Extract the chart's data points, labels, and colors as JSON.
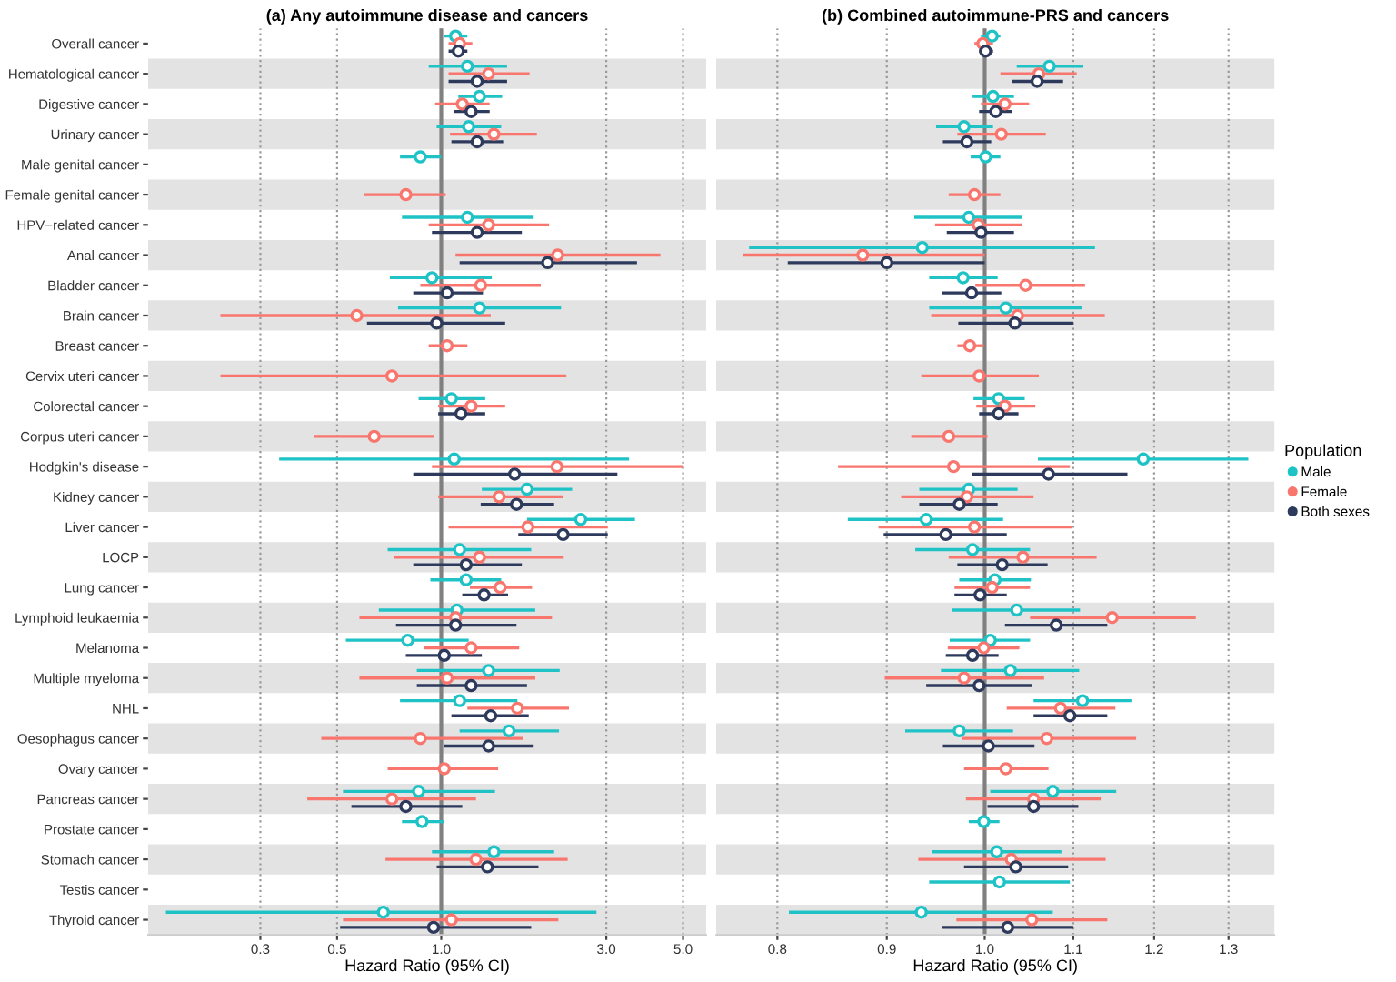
{
  "chart_data": [
    {
      "type": "scatter",
      "orientation": "horizontal",
      "title": "(a) Any autoimmune disease and cancers",
      "xlabel": "Hazard Ratio (95% CI)",
      "categories": [
        "Overall cancer",
        "Hematological cancer",
        "Digestive cancer",
        "Urinary cancer",
        "Male genital cancer",
        "Female genital cancer",
        "HPV−related cancer",
        "Anal cancer",
        "Bladder cancer",
        "Brain cancer",
        "Breast cancer",
        "Cervix uteri cancer",
        "Colorectal cancer",
        "Corpus uteri cancer",
        "Hodgkin's disease",
        "Kidney cancer",
        "Liver cancer",
        "LOCP",
        "Lung cancer",
        "Lymphoid leukaemia",
        "Melanoma",
        "Multiple myeloma",
        "NHL",
        "Oesophagus cancer",
        "Ovary cancer",
        "Pancreas cancer",
        "Prostate cancer",
        "Stomach cancer",
        "Testis cancer",
        "Thyroid cancer"
      ],
      "log": "x",
      "xlim": [
        0.142,
        5.84
      ],
      "xticks": [
        0.3,
        0.5,
        {
          "value": 1,
          "label": "1.0"
        },
        {
          "value": 3,
          "label": "3.0"
        },
        {
          "value": 5,
          "label": "5.0"
        }
      ],
      "grid": "x",
      "marker": "circle",
      "ref_lines": [
        {
          "axis": "x",
          "value": 1,
          "color": "#808080"
        }
      ],
      "bands": [
        {
          "axis": "y",
          "from": "Hematological cancer",
          "to": "Hematological cancer",
          "color": "#e3e3e3"
        },
        {
          "axis": "y",
          "from": "Urinary cancer",
          "to": "Urinary cancer",
          "color": "#e3e3e3"
        },
        {
          "axis": "y",
          "from": "Female genital cancer",
          "to": "Female genital cancer",
          "color": "#e3e3e3"
        },
        {
          "axis": "y",
          "from": "Anal cancer",
          "to": "Anal cancer",
          "color": "#e3e3e3"
        },
        {
          "axis": "y",
          "from": "Brain cancer",
          "to": "Brain cancer",
          "color": "#e3e3e3"
        },
        {
          "axis": "y",
          "from": "Cervix uteri cancer",
          "to": "Cervix uteri cancer",
          "color": "#e3e3e3"
        },
        {
          "axis": "y",
          "from": "Corpus uteri cancer",
          "to": "Corpus uteri cancer",
          "color": "#e3e3e3"
        },
        {
          "axis": "y",
          "from": "Kidney cancer",
          "to": "Kidney cancer",
          "color": "#e3e3e3"
        },
        {
          "axis": "y",
          "from": "LOCP",
          "to": "LOCP",
          "color": "#e3e3e3"
        },
        {
          "axis": "y",
          "from": "Lymphoid leukaemia",
          "to": "Lymphoid leukaemia",
          "color": "#e3e3e3"
        },
        {
          "axis": "y",
          "from": "Multiple myeloma",
          "to": "Multiple myeloma",
          "color": "#e3e3e3"
        },
        {
          "axis": "y",
          "from": "Oesophagus cancer",
          "to": "Oesophagus cancer",
          "color": "#e3e3e3"
        },
        {
          "axis": "y",
          "from": "Pancreas cancer",
          "to": "Pancreas cancer",
          "color": "#e3e3e3"
        },
        {
          "axis": "y",
          "from": "Stomach cancer",
          "to": "Stomach cancer",
          "color": "#e3e3e3"
        },
        {
          "axis": "y",
          "from": "Thyroid cancer",
          "to": "Thyroid cancer",
          "color": "#e3e3e3"
        }
      ],
      "series": [
        {
          "color": "#1fc3c6",
          "values": [
            1.1,
            1.19,
            1.29,
            1.2,
            0.87,
            null,
            1.19,
            null,
            0.94,
            1.29,
            null,
            null,
            1.07,
            null,
            1.09,
            1.77,
            2.53,
            1.13,
            1.18,
            1.11,
            0.8,
            1.37,
            1.13,
            1.57,
            null,
            0.86,
            0.88,
            1.42,
            null,
            0.68
          ],
          "errors": [
            [
              1.02,
              1.19
            ],
            [
              0.92,
              1.55
            ],
            [
              1.12,
              1.5
            ],
            [
              0.97,
              1.49
            ],
            [
              0.76,
              1.0
            ],
            null,
            [
              0.77,
              1.85
            ],
            null,
            [
              0.71,
              1.4
            ],
            [
              0.75,
              2.22
            ],
            null,
            null,
            [
              0.86,
              1.34
            ],
            null,
            [
              0.34,
              3.49
            ],
            [
              1.31,
              2.39
            ],
            [
              1.77,
              3.63
            ],
            [
              0.7,
              1.82
            ],
            [
              0.93,
              1.49
            ],
            [
              0.66,
              1.87
            ],
            [
              0.53,
              1.2
            ],
            [
              0.85,
              2.2
            ],
            [
              0.76,
              1.66
            ],
            [
              1.13,
              2.19
            ],
            null,
            [
              0.52,
              1.43
            ],
            [
              0.77,
              1.02
            ],
            [
              0.94,
              2.12
            ],
            null,
            [
              0.16,
              2.81
            ]
          ]
        },
        {
          "color": "#f8766d",
          "values": [
            1.13,
            1.37,
            1.15,
            1.42,
            null,
            0.79,
            1.37,
            2.17,
            1.3,
            0.57,
            1.04,
            0.72,
            1.22,
            0.64,
            2.16,
            1.47,
            1.78,
            1.29,
            1.48,
            1.1,
            1.22,
            1.04,
            1.66,
            0.87,
            1.02,
            0.72,
            null,
            1.26,
            null,
            1.07
          ],
          "errors": [
            [
              1.05,
              1.23
            ],
            [
              1.05,
              1.8
            ],
            [
              0.96,
              1.38
            ],
            [
              1.06,
              1.89
            ],
            null,
            [
              0.6,
              1.03
            ],
            [
              0.92,
              2.05
            ],
            [
              1.1,
              4.3
            ],
            [
              0.87,
              1.94
            ],
            [
              0.23,
              1.39
            ],
            [
              0.92,
              1.19
            ],
            [
              0.23,
              2.3
            ],
            [
              0.98,
              1.53
            ],
            [
              0.43,
              0.95
            ],
            [
              0.94,
              5.02
            ],
            [
              0.98,
              2.25
            ],
            [
              1.05,
              3.03
            ],
            [
              0.73,
              2.26
            ],
            [
              1.21,
              1.83
            ],
            [
              0.58,
              2.09
            ],
            [
              0.89,
              1.68
            ],
            [
              0.58,
              1.87
            ],
            [
              1.19,
              2.34
            ],
            [
              0.45,
              1.72
            ],
            [
              0.7,
              1.46
            ],
            [
              0.41,
              1.26
            ],
            null,
            [
              0.69,
              2.32
            ],
            null,
            [
              0.52,
              2.18
            ]
          ]
        },
        {
          "color": "#2e3a5c",
          "values": [
            1.12,
            1.27,
            1.22,
            1.27,
            null,
            null,
            1.27,
            2.03,
            1.04,
            0.97,
            null,
            null,
            1.14,
            null,
            1.63,
            1.65,
            2.25,
            1.18,
            1.33,
            1.1,
            1.02,
            1.22,
            1.39,
            1.37,
            null,
            0.79,
            null,
            1.36,
            null,
            0.95
          ],
          "errors": [
            [
              1.05,
              1.19
            ],
            [
              1.05,
              1.55
            ],
            [
              1.09,
              1.38
            ],
            [
              1.07,
              1.51
            ],
            null,
            null,
            [
              0.94,
              1.71
            ],
            [
              1.13,
              3.68
            ],
            [
              0.83,
              1.32
            ],
            [
              0.61,
              1.53
            ],
            null,
            null,
            [
              0.98,
              1.34
            ],
            null,
            [
              0.83,
              3.23
            ],
            [
              1.3,
              2.12
            ],
            [
              1.67,
              3.03
            ],
            [
              0.83,
              1.71
            ],
            [
              1.15,
              1.56
            ],
            [
              0.74,
              1.65
            ],
            [
              0.79,
              1.31
            ],
            [
              0.85,
              1.77
            ],
            [
              1.07,
              1.79
            ],
            [
              1.02,
              1.85
            ],
            null,
            [
              0.55,
              1.15
            ],
            null,
            [
              0.97,
              1.91
            ],
            null,
            [
              0.51,
              1.82
            ]
          ]
        }
      ]
    },
    {
      "type": "scatter",
      "orientation": "horizontal",
      "title": "(b) Combined autoimmune-PRS and cancers",
      "xlabel": "Hazard Ratio (95% CI)",
      "legend_title": "Population",
      "categories": [
        "Overall cancer",
        "Hematological cancer",
        "Digestive cancer",
        "Urinary cancer",
        "Male genital cancer",
        "Female genital cancer",
        "HPV−related cancer",
        "Anal cancer",
        "Bladder cancer",
        "Brain cancer",
        "Breast cancer",
        "Cervix uteri cancer",
        "Colorectal cancer",
        "Corpus uteri cancer",
        "Hodgkin's disease",
        "Kidney cancer",
        "Liver cancer",
        "LOCP",
        "Lung cancer",
        "Lymphoid leukaemia",
        "Melanoma",
        "Multiple myeloma",
        "NHL",
        "Oesophagus cancer",
        "Ovary cancer",
        "Pancreas cancer",
        "Prostate cancer",
        "Stomach cancer",
        "Testis cancer",
        "Thyroid cancer"
      ],
      "log": "x",
      "xlim": [
        0.749,
        1.366
      ],
      "xticks": [
        0.8,
        0.9,
        {
          "value": 1,
          "label": "1.0"
        },
        1.1,
        1.2,
        1.3
      ],
      "grid": "x",
      "marker": "circle",
      "legend": "right",
      "tick_labels": "x",
      "ref_lines": [
        {
          "axis": "x",
          "value": 1,
          "color": "#808080"
        }
      ],
      "bands": [
        {
          "axis": "y",
          "from": "Hematological cancer",
          "to": "Hematological cancer",
          "color": "#e3e3e3"
        },
        {
          "axis": "y",
          "from": "Urinary cancer",
          "to": "Urinary cancer",
          "color": "#e3e3e3"
        },
        {
          "axis": "y",
          "from": "Female genital cancer",
          "to": "Female genital cancer",
          "color": "#e3e3e3"
        },
        {
          "axis": "y",
          "from": "Anal cancer",
          "to": "Anal cancer",
          "color": "#e3e3e3"
        },
        {
          "axis": "y",
          "from": "Brain cancer",
          "to": "Brain cancer",
          "color": "#e3e3e3"
        },
        {
          "axis": "y",
          "from": "Cervix uteri cancer",
          "to": "Cervix uteri cancer",
          "color": "#e3e3e3"
        },
        {
          "axis": "y",
          "from": "Corpus uteri cancer",
          "to": "Corpus uteri cancer",
          "color": "#e3e3e3"
        },
        {
          "axis": "y",
          "from": "Kidney cancer",
          "to": "Kidney cancer",
          "color": "#e3e3e3"
        },
        {
          "axis": "y",
          "from": "LOCP",
          "to": "LOCP",
          "color": "#e3e3e3"
        },
        {
          "axis": "y",
          "from": "Lymphoid leukaemia",
          "to": "Lymphoid leukaemia",
          "color": "#e3e3e3"
        },
        {
          "axis": "y",
          "from": "Multiple myeloma",
          "to": "Multiple myeloma",
          "color": "#e3e3e3"
        },
        {
          "axis": "y",
          "from": "Oesophagus cancer",
          "to": "Oesophagus cancer",
          "color": "#e3e3e3"
        },
        {
          "axis": "y",
          "from": "Pancreas cancer",
          "to": "Pancreas cancer",
          "color": "#e3e3e3"
        },
        {
          "axis": "y",
          "from": "Stomach cancer",
          "to": "Stomach cancer",
          "color": "#e3e3e3"
        },
        {
          "axis": "y",
          "from": "Thyroid cancer",
          "to": "Thyroid cancer",
          "color": "#e3e3e3"
        }
      ],
      "series": [
        {
          "name": "Male",
          "color": "#1fc3c6",
          "values": [
            1.008,
            1.072,
            1.009,
            0.978,
            1.001,
            null,
            0.983,
            0.935,
            0.977,
            1.023,
            null,
            null,
            1.015,
            null,
            1.186,
            0.983,
            0.939,
            0.987,
            1.011,
            1.035,
            1.006,
            1.028,
            1.111,
            0.973,
            null,
            1.076,
            0.999,
            1.013,
            1.016,
            0.934
          ],
          "errors": [
            [
              0.996,
              1.017
            ],
            [
              1.035,
              1.112
            ],
            [
              0.987,
              1.032
            ],
            [
              0.949,
              1.009
            ],
            [
              0.985,
              1.017
            ],
            null,
            [
              0.927,
              1.041
            ],
            [
              0.776,
              1.126
            ],
            [
              0.942,
              1.014
            ],
            [
              0.942,
              1.11
            ],
            null,
            null,
            [
              0.988,
              1.044
            ],
            null,
            [
              1.059,
              1.328
            ],
            [
              0.932,
              1.036
            ],
            [
              0.863,
              1.02
            ],
            [
              0.928,
              1.05
            ],
            [
              0.973,
              1.051
            ],
            [
              0.965,
              1.108
            ],
            [
              0.963,
              1.05
            ],
            [
              0.954,
              1.107
            ],
            [
              1.054,
              1.171
            ],
            [
              0.918,
              1.031
            ],
            null,
            [
              1.006,
              1.152
            ],
            [
              0.983,
              1.016
            ],
            [
              0.945,
              1.086
            ],
            [
              0.942,
              1.096
            ],
            [
              0.81,
              1.076
            ]
          ]
        },
        {
          "name": "Female",
          "color": "#f8766d",
          "values": [
            0.998,
            1.06,
            1.022,
            1.018,
            null,
            0.989,
            0.993,
            0.877,
            1.045,
            1.036,
            0.984,
            0.994,
            1.022,
            0.962,
            0.967,
            0.981,
            0.989,
            1.042,
            1.008,
            1.147,
            0.999,
            0.978,
            1.085,
            1.069,
            1.023,
            1.054,
            null,
            1.029,
            null,
            1.052
          ],
          "errors": [
            [
              0.989,
              1.009
            ],
            [
              1.017,
              1.104
            ],
            [
              0.996,
              1.049
            ],
            [
              0.971,
              1.068
            ],
            null,
            [
              0.962,
              1.017
            ],
            [
              0.948,
              1.041
            ],
            [
              0.771,
              1.0
            ],
            [
              0.99,
              1.114
            ],
            [
              0.944,
              1.138
            ],
            [
              0.971,
              0.999
            ],
            [
              0.934,
              1.06
            ],
            [
              0.991,
              1.056
            ],
            [
              0.924,
              1.003
            ],
            [
              0.854,
              1.096
            ],
            [
              0.914,
              1.054
            ],
            [
              0.892,
              1.099
            ],
            [
              0.962,
              1.128
            ],
            [
              0.968,
              1.05
            ],
            [
              1.05,
              1.255
            ],
            [
              0.961,
              1.038
            ],
            [
              0.898,
              1.066
            ],
            [
              1.024,
              1.151
            ],
            [
              0.976,
              1.177
            ],
            [
              0.978,
              1.071
            ],
            [
              0.98,
              1.133
            ],
            null,
            [
              0.931,
              1.139
            ],
            null,
            [
              0.97,
              1.141
            ]
          ]
        },
        {
          "name": "Both sexes",
          "color": "#2e3a5c",
          "values": [
            1.001,
            1.058,
            1.012,
            0.981,
            null,
            null,
            0.996,
            0.9,
            0.986,
            1.033,
            null,
            null,
            1.015,
            null,
            1.071,
            0.973,
            0.959,
            1.019,
            0.995,
            1.08,
            0.987,
            0.994,
            1.096,
            1.004,
            null,
            1.054,
            null,
            1.034,
            null,
            1.025
          ],
          "errors": [
            [
              0.994,
              1.009
            ],
            [
              1.03,
              1.088
            ],
            [
              0.994,
              1.03
            ],
            [
              0.956,
              1.007
            ],
            null,
            null,
            [
              0.96,
              1.032
            ],
            [
              0.809,
              1.0
            ],
            [
              0.955,
              1.018
            ],
            [
              0.972,
              1.1
            ],
            null,
            null,
            [
              0.994,
              1.037
            ],
            null,
            [
              0.986,
              1.166
            ],
            [
              0.932,
              1.014
            ],
            [
              0.897,
              1.024
            ],
            [
              0.971,
              1.07
            ],
            [
              0.968,
              1.024
            ],
            [
              1.022,
              1.141
            ],
            [
              0.959,
              1.015
            ],
            [
              0.939,
              1.052
            ],
            [
              1.054,
              1.141
            ],
            [
              0.956,
              1.055
            ],
            null,
            [
              1.003,
              1.106
            ],
            null,
            [
              0.978,
              1.094
            ],
            null,
            [
              0.955,
              1.1
            ]
          ]
        }
      ]
    }
  ]
}
